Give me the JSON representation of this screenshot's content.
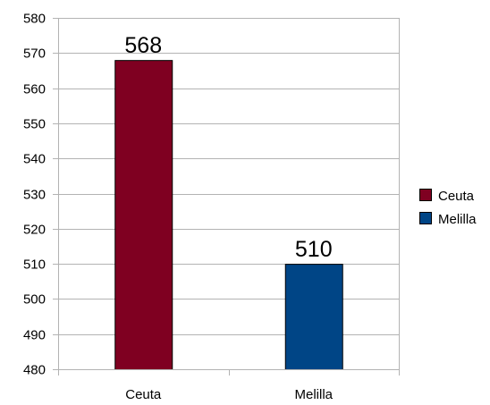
{
  "chart_data": {
    "type": "bar",
    "categories": [
      "Ceuta",
      "Melilla"
    ],
    "values": [
      568,
      510
    ],
    "data_labels": [
      "568",
      "510"
    ],
    "colors": [
      "#7f0021",
      "#004586"
    ],
    "title": "",
    "xlabel": "",
    "ylabel": "",
    "ylim": [
      480,
      580
    ],
    "yticks": [
      480,
      490,
      500,
      510,
      520,
      530,
      540,
      550,
      560,
      570,
      580
    ],
    "grid": true,
    "legend": {
      "placement": "right",
      "entries": [
        {
          "label": "Ceuta",
          "color": "#7f0021"
        },
        {
          "label": "Melilla",
          "color": "#004586"
        }
      ]
    }
  }
}
